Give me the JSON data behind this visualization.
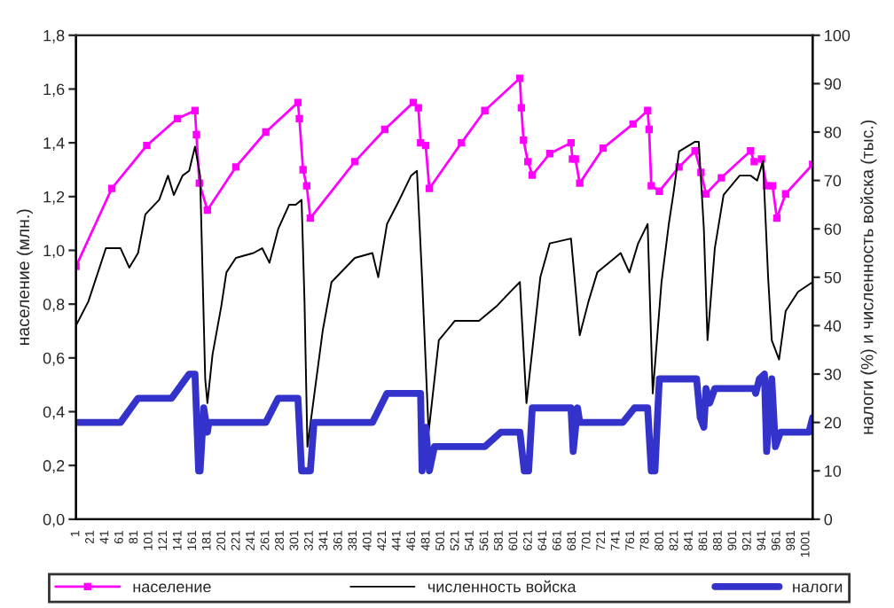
{
  "chart_data": {
    "type": "line",
    "ylabel": "население (млн.)",
    "y2label": "налоги (%) и численность войска (тыс.)",
    "xlim": [
      1,
      1010
    ],
    "xticks": [
      1,
      21,
      41,
      61,
      81,
      101,
      121,
      141,
      161,
      181,
      201,
      221,
      241,
      261,
      281,
      301,
      321,
      341,
      361,
      381,
      401,
      421,
      441,
      461,
      481,
      501,
      521,
      541,
      561,
      581,
      601,
      621,
      641,
      661,
      681,
      701,
      721,
      741,
      761,
      781,
      801,
      821,
      841,
      861,
      881,
      901,
      921,
      941,
      961,
      981,
      1001
    ],
    "ylim": [
      0,
      1.8
    ],
    "yticks": [
      {
        "value": 0,
        "label": "0,0"
      },
      {
        "value": 0.2,
        "label": "0,2"
      },
      {
        "value": 0.4,
        "label": "0,4"
      },
      {
        "value": 0.6,
        "label": "0,6"
      },
      {
        "value": 0.8,
        "label": "0,8"
      },
      {
        "value": 1.0,
        "label": "1,0"
      },
      {
        "value": 1.2,
        "label": "1,2"
      },
      {
        "value": 1.4,
        "label": "1,4"
      },
      {
        "value": 1.6,
        "label": "1,6"
      },
      {
        "value": 1.8,
        "label": "1,8"
      }
    ],
    "y2lim": [
      0,
      100
    ],
    "y2ticks": [
      0,
      10,
      20,
      30,
      40,
      50,
      60,
      70,
      80,
      90,
      100
    ],
    "grid": false,
    "legend": "bottom",
    "series": [
      {
        "name": "население",
        "color": "#ff00ff",
        "marker": "square",
        "x": [
          1,
          50,
          98,
          140,
          164,
          166,
          170,
          181,
          220,
          261,
          305,
          307,
          312,
          317,
          322,
          383,
          424,
          463,
          470,
          473,
          480,
          485,
          529,
          561,
          609,
          611,
          614,
          620,
          626,
          650,
          679,
          681,
          685,
          691,
          723,
          764,
          784,
          786,
          789,
          800,
          827,
          849,
          857,
          864,
          885,
          925,
          930,
          940,
          947,
          955,
          961,
          973,
          1010
        ],
        "values": [
          0.94,
          1.23,
          1.39,
          1.49,
          1.52,
          1.43,
          1.25,
          1.15,
          1.31,
          1.44,
          1.55,
          1.49,
          1.3,
          1.24,
          1.12,
          1.33,
          1.45,
          1.55,
          1.53,
          1.4,
          1.39,
          1.23,
          1.4,
          1.52,
          1.64,
          1.53,
          1.41,
          1.33,
          1.28,
          1.36,
          1.4,
          1.34,
          1.34,
          1.25,
          1.38,
          1.47,
          1.52,
          1.45,
          1.24,
          1.22,
          1.31,
          1.37,
          1.29,
          1.21,
          1.27,
          1.37,
          1.33,
          1.34,
          1.24,
          1.24,
          1.12,
          1.21,
          1.32
        ]
      },
      {
        "name": "численность войска",
        "color": "#000000",
        "marker": "none",
        "axis": "y2",
        "x": [
          1,
          18,
          42,
          62,
          74,
          86,
          96,
          115,
          127,
          135,
          147,
          156,
          164,
          171,
          178,
          181,
          188,
          200,
          207,
          220,
          244,
          256,
          266,
          278,
          293,
          302,
          310,
          314,
          318,
          339,
          351,
          383,
          407,
          415,
          427,
          444,
          460,
          468,
          475,
          484,
          498,
          520,
          553,
          577,
          596,
          609,
          618,
          637,
          650,
          679,
          691,
          703,
          715,
          739,
          747,
          759,
          771,
          784,
          791,
          803,
          813,
          820,
          827,
          849,
          854,
          861,
          866,
          876,
          888,
          910,
          925,
          934,
          942,
          949,
          954,
          964,
          973,
          990,
          1010
        ],
        "values": [
          40,
          45,
          56,
          56,
          52,
          55,
          63,
          66,
          71,
          67,
          71,
          72,
          77,
          71,
          29,
          24,
          34,
          44,
          51,
          54,
          55,
          56,
          53,
          60,
          65,
          65,
          66,
          45,
          15,
          39,
          49,
          54,
          55,
          50,
          61,
          66,
          71,
          72,
          50,
          18,
          37,
          41,
          41,
          44,
          47,
          49,
          24,
          50,
          57,
          58,
          38,
          45,
          51,
          54,
          55,
          51,
          57,
          61,
          26,
          49,
          61,
          68,
          76,
          78,
          78,
          60,
          37,
          56,
          67,
          71,
          71,
          70,
          74,
          50,
          37,
          33,
          43,
          47,
          49
        ]
      },
      {
        "name": "налоги",
        "color": "#3333cc",
        "marker": "none",
        "axis": "y2",
        "x": [
          1,
          62,
          86,
          132,
          156,
          164,
          169,
          171,
          176,
          181,
          183,
          261,
          278,
          305,
          310,
          322,
          327,
          407,
          427,
          473,
          475,
          480,
          485,
          492,
          561,
          583,
          609,
          615,
          621,
          626,
          679,
          682,
          688,
          691,
          750,
          766,
          784,
          789,
          794,
          800,
          851,
          856,
          861,
          864,
          869,
          876,
          930,
          932,
          937,
          944,
          947,
          954,
          959,
          966,
          1005,
          1010
        ],
        "values": [
          20,
          20,
          25,
          25,
          30,
          30,
          10,
          10,
          23,
          18,
          20,
          20,
          25,
          25,
          10,
          10,
          20,
          20,
          26,
          26,
          10,
          19,
          10,
          15,
          15,
          18,
          18,
          10,
          10,
          23,
          23,
          14,
          23,
          20,
          20,
          23,
          23,
          10,
          10,
          29,
          29,
          21,
          19,
          27,
          24,
          27,
          27,
          26,
          29,
          30,
          14,
          29,
          15,
          18,
          18,
          21
        ]
      }
    ]
  }
}
